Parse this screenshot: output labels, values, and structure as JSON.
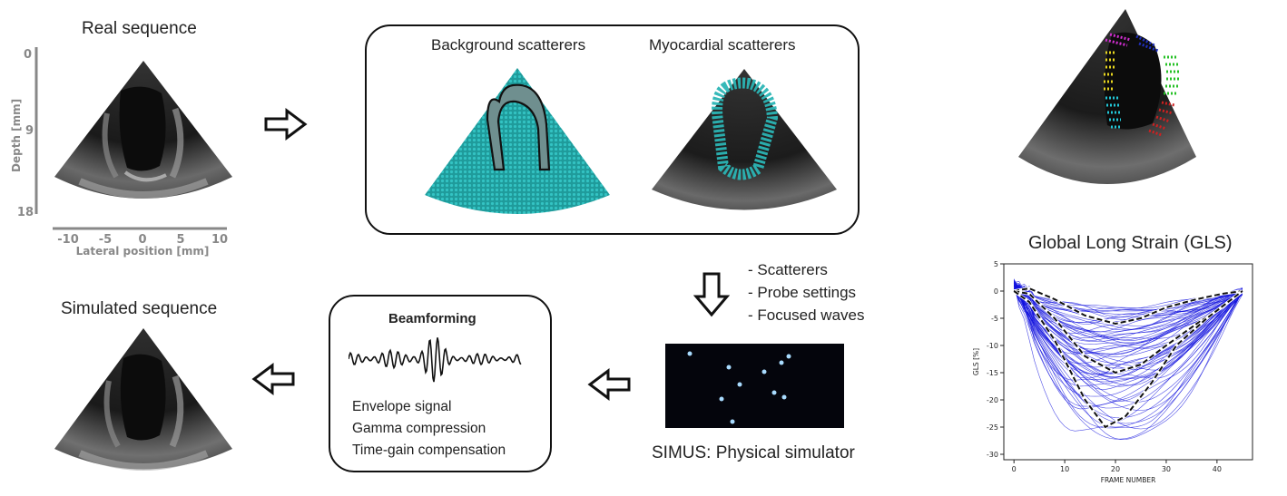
{
  "real": {
    "title": "Real sequence",
    "depth_label": "Depth [mm]",
    "depth_ticks": [
      "0",
      "9",
      "18"
    ],
    "lateral_label": "Lateral position [mm]",
    "lateral_ticks": [
      "-10",
      "-5",
      "0",
      "5",
      "10"
    ]
  },
  "scatterers": {
    "background_label": "Background scatterers",
    "myocardial_label": "Myocardial scatterers"
  },
  "simus": {
    "inputs": [
      "- Scatterers",
      "- Probe settings",
      "- Focused waves"
    ],
    "label": "SIMUS: Physical simulator"
  },
  "beamforming": {
    "title": "Beamforming",
    "steps": [
      "Envelope signal",
      "Gamma compression",
      "Time-gain compensation"
    ]
  },
  "simulated": {
    "title": "Simulated sequence"
  },
  "gls": {
    "title": "Global Long Strain (GLS)"
  },
  "chart_data": {
    "type": "line",
    "title": "Global Long Strain (GLS)",
    "xlabel": "FRAME NUMBER",
    "ylabel": "GLS [%]",
    "xlim": [
      -2,
      47
    ],
    "ylim": [
      -31,
      5
    ],
    "xticks": [
      0,
      10,
      20,
      30,
      40
    ],
    "yticks": [
      5,
      0,
      -5,
      -10,
      -15,
      -20,
      -25,
      -30
    ],
    "series_color": "#1010dd",
    "summary_color": "#111111",
    "summary": [
      {
        "name": "",
        "x": [
          0,
          3,
          8,
          14,
          20,
          25,
          30,
          36,
          41,
          45
        ],
        "y": [
          0,
          0.5,
          -1.5,
          -4.5,
          -6,
          -5,
          -3,
          -1.5,
          -0.5,
          0
        ]
      },
      {
        "name": "",
        "x": [
          0,
          3,
          8,
          14,
          20,
          25,
          30,
          36,
          41,
          45
        ],
        "y": [
          0,
          -0.5,
          -5,
          -12,
          -15,
          -13.5,
          -10,
          -6,
          -3,
          0
        ]
      },
      {
        "name": "",
        "x": [
          0,
          3,
          8,
          14,
          18,
          22,
          27,
          32,
          38,
          45
        ],
        "y": [
          0,
          -2,
          -9,
          -20,
          -25,
          -23,
          -17,
          -10,
          -5,
          0
        ]
      }
    ]
  },
  "colors": {
    "scatter_teal": "#21a6a6",
    "ultrasound_bg": "#151515",
    "arrow": "#111111",
    "simus_dot": "#9fd3ff"
  }
}
